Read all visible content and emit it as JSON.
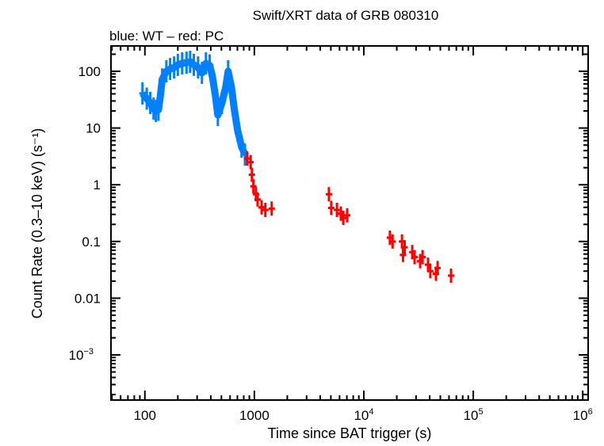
{
  "chart_data": {
    "type": "scatter",
    "title": "Swift/XRT data of GRB 080310",
    "subtitle": "blue: WT – red: PC",
    "xlabel": "Time since BAT trigger (s)",
    "ylabel": "Count Rate (0.3–10 keV) (s⁻¹)",
    "x_scale": "log",
    "y_scale": "log",
    "xlim": [
      49,
      1120000
    ],
    "ylim": [
      0.00016,
      280
    ],
    "grid": false,
    "legend": "none",
    "x_ticks": [
      {
        "value": 100,
        "label": "100"
      },
      {
        "value": 1000,
        "label": "1000"
      },
      {
        "value": 10000,
        "label": "10",
        "exp": "4"
      },
      {
        "value": 100000,
        "label": "10",
        "exp": "5"
      },
      {
        "value": 1000000,
        "label": "10",
        "exp": "6"
      }
    ],
    "y_ticks": [
      {
        "value": 100,
        "label": "100"
      },
      {
        "value": 10,
        "label": "10"
      },
      {
        "value": 1,
        "label": "1"
      },
      {
        "value": 0.1,
        "label": "0.1"
      },
      {
        "value": 0.01,
        "label": "0.01"
      },
      {
        "value": 0.001,
        "label": "10",
        "exp": "−3"
      }
    ],
    "series": [
      {
        "name": "WT",
        "color": "#0080ff",
        "points": [
          [
            95,
            40.7
          ],
          [
            104,
            33
          ],
          [
            112,
            27.6
          ],
          [
            120,
            22
          ],
          [
            126,
            20
          ],
          [
            133,
            21
          ],
          [
            138,
            35
          ],
          [
            144,
            72
          ],
          [
            157,
            100
          ],
          [
            170,
            110
          ],
          [
            185,
            117
          ],
          [
            200,
            130
          ],
          [
            219,
            138
          ],
          [
            240,
            142
          ],
          [
            259,
            147
          ],
          [
            280,
            130
          ],
          [
            306,
            117
          ],
          [
            332,
            94
          ],
          [
            361,
            138
          ],
          [
            391,
            127
          ],
          [
            412,
            85
          ],
          [
            440,
            38
          ],
          [
            464,
            17
          ],
          [
            505,
            27.5
          ],
          [
            548,
            53
          ],
          [
            576,
            100
          ],
          [
            617,
            53
          ],
          [
            659,
            20
          ],
          [
            704,
            9
          ],
          [
            764,
            4.7
          ],
          [
            820,
            3.4
          ]
        ]
      },
      {
        "name": "PC",
        "color": "#ff0000",
        "points": [
          [
            860,
            2.9
          ],
          [
            925,
            2.5
          ],
          [
            950,
            1.5
          ],
          [
            980,
            0.94
          ],
          [
            1034,
            0.68
          ],
          [
            1070,
            0.55
          ],
          [
            1165,
            0.4
          ],
          [
            1260,
            0.36
          ],
          [
            1440,
            0.38
          ],
          [
            4800,
            0.68
          ],
          [
            5040,
            0.39
          ],
          [
            5680,
            0.36
          ],
          [
            6170,
            0.31
          ],
          [
            6490,
            0.26
          ],
          [
            7050,
            0.29
          ],
          [
            17300,
            0.117
          ],
          [
            18300,
            0.1
          ],
          [
            22300,
            0.1
          ],
          [
            22800,
            0.058
          ],
          [
            23600,
            0.079
          ],
          [
            27700,
            0.065
          ],
          [
            29100,
            0.053
          ],
          [
            32700,
            0.045
          ],
          [
            34400,
            0.053
          ],
          [
            38600,
            0.039
          ],
          [
            40500,
            0.03
          ],
          [
            45600,
            0.027
          ],
          [
            47200,
            0.034
          ],
          [
            62600,
            0.025
          ]
        ]
      }
    ]
  }
}
